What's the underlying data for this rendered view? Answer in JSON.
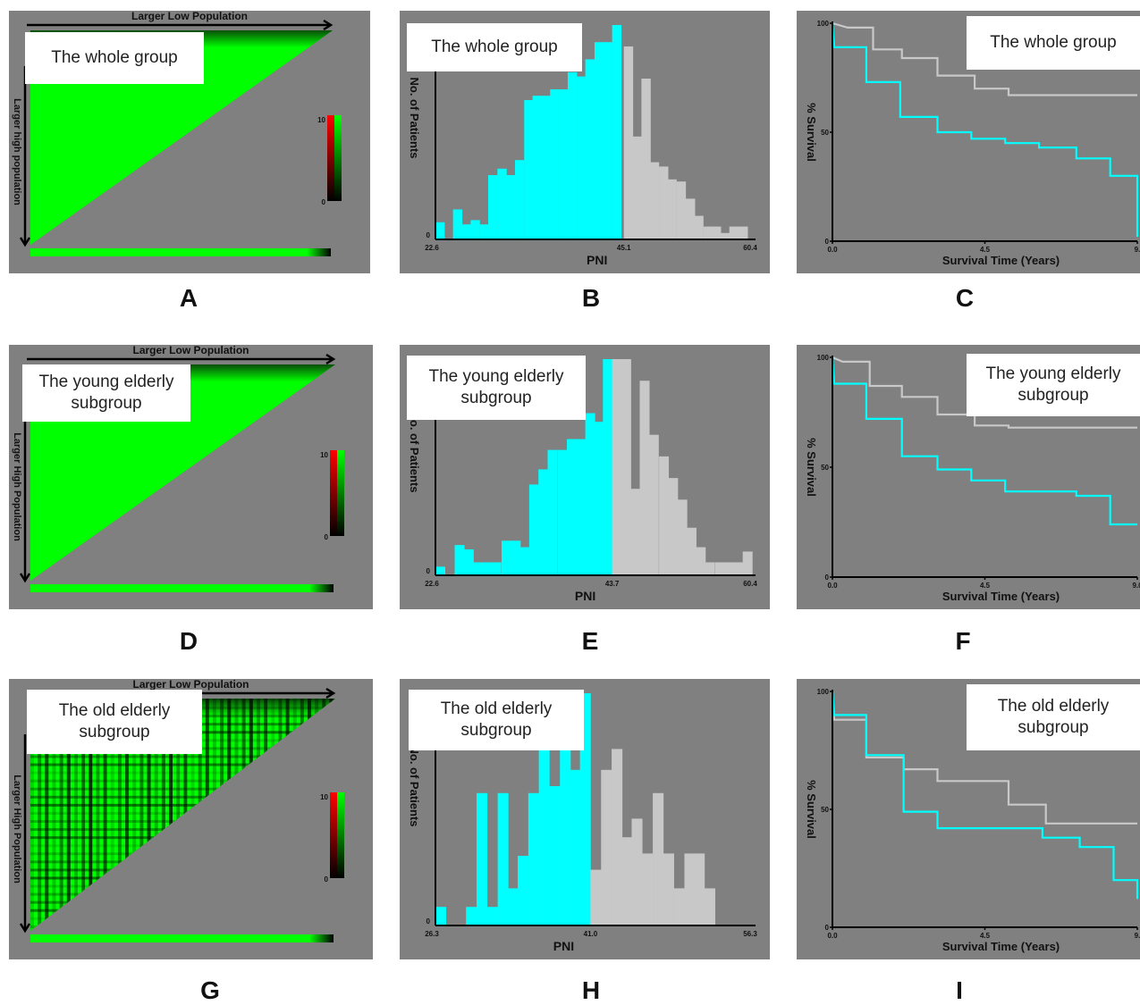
{
  "colors": {
    "panel_bg": "#808080",
    "low_group": "#00ffff",
    "high_group": "#c8c8c8",
    "heat_green": "#00ff00",
    "heat_red": "#ff0000",
    "heat_black": "#000000"
  },
  "heatmaps": [
    {
      "letter": "A",
      "label": "The whole group",
      "x_title": "Larger Low Population",
      "y_title": "Larger high population",
      "legend_max": "10",
      "legend_min": "0",
      "texture": "smooth"
    },
    {
      "letter": "D",
      "label": "The young elderly subgroup",
      "x_title": "Larger Low Population",
      "y_title": "Larger High Population",
      "legend_max": "10",
      "legend_min": "0",
      "texture": "smooth"
    },
    {
      "letter": "G",
      "label": "The old elderly subgroup",
      "x_title": "Larger Low Population",
      "y_title": "Larger High Population",
      "legend_max": "10",
      "legend_min": "0",
      "texture": "striped"
    }
  ],
  "chart_data": [
    {
      "type": "bar",
      "letter": "B",
      "label": "The whole group",
      "xlabel": "PNI",
      "ylabel": "No. of Patients",
      "tick_min": "22.6",
      "tick_cut": "45.1",
      "tick_max": "60.4",
      "y_tick_zero": "0",
      "xlim": [
        22.6,
        60.4
      ],
      "cutoff": 45.1,
      "ymax": 100,
      "bin_width": 1.06,
      "low_bins": [
        {
          "start": 22.6,
          "value": 8
        },
        {
          "start": 23.7,
          "value": 0
        },
        {
          "start": 24.7,
          "value": 14
        },
        {
          "start": 25.8,
          "value": 7
        },
        {
          "start": 26.8,
          "value": 9
        },
        {
          "start": 27.9,
          "value": 7
        },
        {
          "start": 28.9,
          "value": 30
        },
        {
          "start": 30.0,
          "value": 33
        },
        {
          "start": 31.0,
          "value": 30
        },
        {
          "start": 32.1,
          "value": 37
        },
        {
          "start": 33.2,
          "value": 65
        },
        {
          "start": 34.2,
          "value": 67
        },
        {
          "start": 35.3,
          "value": 67
        },
        {
          "start": 36.3,
          "value": 70
        },
        {
          "start": 37.4,
          "value": 70
        },
        {
          "start": 38.4,
          "value": 78
        },
        {
          "start": 39.5,
          "value": 76
        },
        {
          "start": 40.5,
          "value": 84
        },
        {
          "start": 41.6,
          "value": 92
        },
        {
          "start": 42.6,
          "value": 92
        },
        {
          "start": 43.7,
          "value": 100
        }
      ],
      "high_bins": [
        {
          "start": 45.1,
          "value": 90
        },
        {
          "start": 46.1,
          "value": 48
        },
        {
          "start": 47.2,
          "value": 75
        },
        {
          "start": 48.2,
          "value": 36
        },
        {
          "start": 49.3,
          "value": 34
        },
        {
          "start": 50.3,
          "value": 28
        },
        {
          "start": 51.4,
          "value": 27
        },
        {
          "start": 52.5,
          "value": 19
        },
        {
          "start": 53.5,
          "value": 11
        },
        {
          "start": 54.6,
          "value": 6
        },
        {
          "start": 55.6,
          "value": 6
        },
        {
          "start": 56.7,
          "value": 3
        },
        {
          "start": 57.7,
          "value": 6
        },
        {
          "start": 58.8,
          "value": 6
        }
      ]
    },
    {
      "type": "line",
      "letter": "C",
      "label": "The whole group",
      "xlabel": "Survival Time (Years)",
      "ylabel": "% Survival",
      "x_ticks": [
        "0.0",
        "4.5",
        "9."
      ],
      "y_ticks": [
        "0",
        "50",
        "100"
      ],
      "xlim": [
        0,
        9
      ],
      "ylim": [
        0,
        100
      ],
      "series": [
        {
          "color": "#c8c8c8",
          "points": [
            [
              0,
              100
            ],
            [
              0.45,
              98
            ],
            [
              1.2,
              98
            ],
            [
              1.2,
              88
            ],
            [
              2.05,
              88
            ],
            [
              2.05,
              84
            ],
            [
              3.1,
              84
            ],
            [
              3.1,
              76
            ],
            [
              4.2,
              76
            ],
            [
              4.2,
              70
            ],
            [
              5.2,
              70
            ],
            [
              5.2,
              67
            ],
            [
              9,
              67
            ]
          ]
        },
        {
          "color": "#00ffff",
          "points": [
            [
              0,
              100
            ],
            [
              0.05,
              89
            ],
            [
              1.0,
              89
            ],
            [
              1.0,
              73
            ],
            [
              2.0,
              73
            ],
            [
              2.0,
              57
            ],
            [
              3.1,
              57
            ],
            [
              3.1,
              50
            ],
            [
              4.1,
              50
            ],
            [
              4.1,
              47
            ],
            [
              5.1,
              47
            ],
            [
              5.1,
              45
            ],
            [
              6.1,
              45
            ],
            [
              6.1,
              43
            ],
            [
              7.2,
              43
            ],
            [
              7.2,
              38
            ],
            [
              8.2,
              38
            ],
            [
              8.2,
              30
            ],
            [
              9,
              30
            ],
            [
              9,
              2
            ]
          ]
        }
      ]
    },
    {
      "type": "bar",
      "letter": "E",
      "label": "The young elderly subgroup",
      "xlabel": "PNI",
      "ylabel": "No. of Patients",
      "tick_min": "22.6",
      "tick_cut": "43.7",
      "tick_max": "60.4",
      "y_tick_zero": "0",
      "xlim": [
        22.6,
        60.4
      ],
      "cutoff": 43.7,
      "ymax": 100,
      "bin_width": 1.12,
      "low_bins": [
        {
          "start": 22.6,
          "value": 4
        },
        {
          "start": 23.7,
          "value": 0
        },
        {
          "start": 24.9,
          "value": 14
        },
        {
          "start": 26.0,
          "value": 12
        },
        {
          "start": 27.1,
          "value": 6
        },
        {
          "start": 28.2,
          "value": 6
        },
        {
          "start": 29.3,
          "value": 6
        },
        {
          "start": 30.5,
          "value": 16
        },
        {
          "start": 31.6,
          "value": 16
        },
        {
          "start": 32.7,
          "value": 13
        },
        {
          "start": 33.8,
          "value": 42
        },
        {
          "start": 34.9,
          "value": 49
        },
        {
          "start": 36.0,
          "value": 58
        },
        {
          "start": 37.2,
          "value": 58
        },
        {
          "start": 38.3,
          "value": 63
        },
        {
          "start": 39.4,
          "value": 63
        },
        {
          "start": 40.5,
          "value": 75
        },
        {
          "start": 41.6,
          "value": 71
        },
        {
          "start": 42.6,
          "value": 100
        }
      ],
      "high_bins": [
        {
          "start": 43.7,
          "value": 100
        },
        {
          "start": 44.8,
          "value": 100
        },
        {
          "start": 45.9,
          "value": 40
        },
        {
          "start": 47.0,
          "value": 90
        },
        {
          "start": 48.1,
          "value": 65
        },
        {
          "start": 49.3,
          "value": 55
        },
        {
          "start": 50.4,
          "value": 45
        },
        {
          "start": 51.5,
          "value": 35
        },
        {
          "start": 52.6,
          "value": 22
        },
        {
          "start": 53.7,
          "value": 13
        },
        {
          "start": 54.8,
          "value": 6
        },
        {
          "start": 56.0,
          "value": 6
        },
        {
          "start": 57.1,
          "value": 6
        },
        {
          "start": 58.2,
          "value": 6
        },
        {
          "start": 59.3,
          "value": 11
        }
      ]
    },
    {
      "type": "line",
      "letter": "F",
      "label": "The young elderly subgroup",
      "xlabel": "Survival Time (Years)",
      "ylabel": "% Survival",
      "x_ticks": [
        "0.0",
        "4.5",
        "9.0"
      ],
      "y_ticks": [
        "0",
        "50",
        "100"
      ],
      "xlim": [
        0,
        9
      ],
      "ylim": [
        0,
        100
      ],
      "series": [
        {
          "color": "#c8c8c8",
          "points": [
            [
              0,
              100
            ],
            [
              0.3,
              98
            ],
            [
              1.1,
              98
            ],
            [
              1.1,
              87
            ],
            [
              2.05,
              87
            ],
            [
              2.05,
              82
            ],
            [
              3.1,
              82
            ],
            [
              3.1,
              74
            ],
            [
              4.2,
              74
            ],
            [
              4.2,
              69
            ],
            [
              5.2,
              69
            ],
            [
              5.2,
              68
            ],
            [
              9,
              68
            ]
          ]
        },
        {
          "color": "#00ffff",
          "points": [
            [
              0,
              100
            ],
            [
              0.05,
              88
            ],
            [
              1.0,
              88
            ],
            [
              1.0,
              72
            ],
            [
              2.05,
              72
            ],
            [
              2.05,
              55
            ],
            [
              3.1,
              55
            ],
            [
              3.1,
              49
            ],
            [
              4.1,
              49
            ],
            [
              4.1,
              44
            ],
            [
              5.1,
              44
            ],
            [
              5.1,
              39
            ],
            [
              7.2,
              39
            ],
            [
              7.2,
              37
            ],
            [
              8.2,
              37
            ],
            [
              8.2,
              24
            ],
            [
              9,
              24
            ]
          ]
        }
      ]
    },
    {
      "type": "bar",
      "letter": "H",
      "label": "The old elderly subgroup",
      "xlabel": "PNI",
      "ylabel": "No. of Patients",
      "tick_min": "26.3",
      "tick_cut": "41.0",
      "tick_max": "56.3",
      "y_tick_zero": "0",
      "xlim": [
        26.3,
        56.3
      ],
      "cutoff": 41.0,
      "ymax": 100,
      "bin_width": 0.98,
      "low_bins": [
        {
          "start": 26.3,
          "value": 8
        },
        {
          "start": 27.3,
          "value": 0
        },
        {
          "start": 28.2,
          "value": 0
        },
        {
          "start": 29.2,
          "value": 8
        },
        {
          "start": 30.2,
          "value": 57
        },
        {
          "start": 31.2,
          "value": 8
        },
        {
          "start": 32.2,
          "value": 57
        },
        {
          "start": 33.2,
          "value": 16
        },
        {
          "start": 34.1,
          "value": 30
        },
        {
          "start": 35.1,
          "value": 57
        },
        {
          "start": 36.1,
          "value": 100
        },
        {
          "start": 37.1,
          "value": 60
        },
        {
          "start": 38.1,
          "value": 100
        },
        {
          "start": 39.1,
          "value": 67
        },
        {
          "start": 40.0,
          "value": 100
        }
      ],
      "high_bins": [
        {
          "start": 41.0,
          "value": 24
        },
        {
          "start": 42.0,
          "value": 67
        },
        {
          "start": 43.0,
          "value": 76
        },
        {
          "start": 44.0,
          "value": 38
        },
        {
          "start": 44.9,
          "value": 46
        },
        {
          "start": 45.9,
          "value": 31
        },
        {
          "start": 46.9,
          "value": 57
        },
        {
          "start": 47.9,
          "value": 31
        },
        {
          "start": 48.9,
          "value": 16
        },
        {
          "start": 49.9,
          "value": 31
        },
        {
          "start": 50.8,
          "value": 31
        },
        {
          "start": 51.8,
          "value": 16
        }
      ]
    },
    {
      "type": "line",
      "letter": "I",
      "label": "The old elderly subgroup",
      "xlabel": "Survival Time (Years)",
      "ylabel": "% Survival",
      "x_ticks": [
        "0.0",
        "4.5",
        "9."
      ],
      "y_ticks": [
        "0",
        "50",
        "100"
      ],
      "xlim": [
        0,
        9
      ],
      "ylim": [
        0,
        100
      ],
      "series": [
        {
          "color": "#c8c8c8",
          "points": [
            [
              0,
              100
            ],
            [
              0.05,
              88
            ],
            [
              1.0,
              88
            ],
            [
              1.0,
              72
            ],
            [
              2.1,
              72
            ],
            [
              2.1,
              67
            ],
            [
              3.1,
              67
            ],
            [
              3.1,
              62
            ],
            [
              5.2,
              62
            ],
            [
              5.2,
              52
            ],
            [
              6.3,
              52
            ],
            [
              6.3,
              44
            ],
            [
              9,
              44
            ]
          ]
        },
        {
          "color": "#00ffff",
          "points": [
            [
              0,
              100
            ],
            [
              0.05,
              90
            ],
            [
              1.0,
              90
            ],
            [
              1.0,
              73
            ],
            [
              2.1,
              73
            ],
            [
              2.1,
              49
            ],
            [
              3.1,
              49
            ],
            [
              3.1,
              42
            ],
            [
              6.2,
              42
            ],
            [
              6.2,
              38
            ],
            [
              7.3,
              38
            ],
            [
              7.3,
              34
            ],
            [
              8.3,
              34
            ],
            [
              8.3,
              20
            ],
            [
              9,
              20
            ],
            [
              9,
              12
            ]
          ]
        }
      ]
    }
  ]
}
